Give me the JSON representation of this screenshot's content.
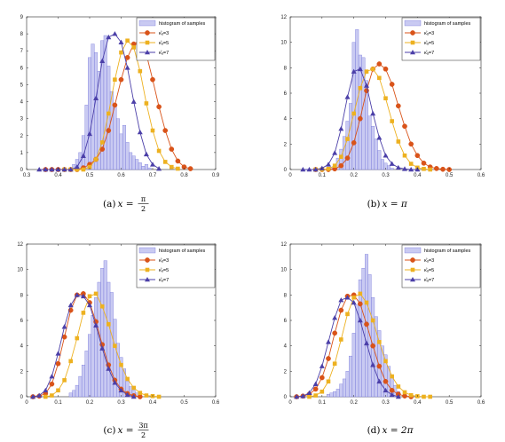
{
  "colors": {
    "histogram_fill": "#c9caf2",
    "histogram_edge": "#6b6cd6",
    "series_k3": "#d95319",
    "series_k5": "#edb120",
    "series_k7": "#4b3fa8"
  },
  "chart_data": [
    {
      "type": "bar",
      "caption": {
        "label": "(a)",
        "math": "x =",
        "frac_num": "π",
        "frac_den": "2"
      },
      "xlim": [
        0.3,
        0.9
      ],
      "ylim": [
        0,
        9
      ],
      "xticks": [
        "0.3",
        "0.4",
        "0.5",
        "0.6",
        "0.7",
        "0.8",
        "0.9"
      ],
      "yticks": [
        "0",
        "1",
        "2",
        "3",
        "4",
        "5",
        "6",
        "7",
        "8",
        "9"
      ],
      "grid": false,
      "legend_position": "top-right",
      "legend": [
        "histogram of samples",
        "κ̂ᵤ=3",
        "κ̂ᵤ=5",
        "κ̂ᵤ=7"
      ],
      "histogram": {
        "name": "histogram of samples",
        "x": [
          0.45,
          0.46,
          0.47,
          0.48,
          0.49,
          0.5,
          0.51,
          0.52,
          0.53,
          0.54,
          0.55,
          0.56,
          0.57,
          0.58,
          0.59,
          0.6,
          0.61,
          0.62,
          0.63,
          0.64,
          0.65,
          0.66,
          0.67,
          0.68,
          0.69
        ],
        "values": [
          0.3,
          0.6,
          1.0,
          2.0,
          3.8,
          6.6,
          7.4,
          6.9,
          5.8,
          7.6,
          7.9,
          6.1,
          4.6,
          3.8,
          3.0,
          2.1,
          2.6,
          1.6,
          1.0,
          0.8,
          0.6,
          0.4,
          0.2,
          0.3,
          0.1
        ]
      },
      "series": [
        {
          "name": "κ̂ᵤ=3",
          "marker": "circle",
          "x": [
            0.36,
            0.38,
            0.4,
            0.42,
            0.44,
            0.46,
            0.48,
            0.5,
            0.52,
            0.54,
            0.56,
            0.58,
            0.6,
            0.62,
            0.64,
            0.66,
            0.68,
            0.7,
            0.72,
            0.74,
            0.76,
            0.78,
            0.8,
            0.82
          ],
          "values": [
            0,
            0,
            0,
            0,
            0,
            0,
            0.1,
            0.3,
            0.6,
            1.2,
            2.3,
            3.8,
            5.3,
            6.6,
            7.4,
            7.6,
            6.8,
            5.3,
            3.7,
            2.3,
            1.2,
            0.5,
            0.15,
            0.05
          ]
        },
        {
          "name": "κ̂ᵤ=5",
          "marker": "square",
          "x": [
            0.42,
            0.44,
            0.46,
            0.48,
            0.5,
            0.52,
            0.54,
            0.56,
            0.58,
            0.6,
            0.62,
            0.64,
            0.66,
            0.68,
            0.7,
            0.72,
            0.74,
            0.76,
            0.78
          ],
          "values": [
            0,
            0,
            0,
            0,
            0.15,
            0.6,
            1.6,
            3.3,
            5.3,
            6.9,
            7.6,
            7.2,
            5.8,
            3.9,
            2.3,
            1.1,
            0.45,
            0.15,
            0.05
          ]
        },
        {
          "name": "κ̂ᵤ=7",
          "marker": "triangle",
          "x": [
            0.34,
            0.36,
            0.38,
            0.4,
            0.42,
            0.44,
            0.46,
            0.48,
            0.5,
            0.52,
            0.54,
            0.56,
            0.58,
            0.6,
            0.62,
            0.64,
            0.66,
            0.68,
            0.7,
            0.72
          ],
          "values": [
            0,
            0,
            0,
            0,
            0,
            0,
            0.15,
            0.8,
            2.1,
            4.2,
            6.4,
            7.8,
            8.0,
            7.5,
            6.0,
            4.0,
            2.2,
            0.9,
            0.3,
            0.05
          ]
        }
      ]
    },
    {
      "type": "bar",
      "caption": {
        "label": "(b)",
        "math": "x = π"
      },
      "xlim": [
        0,
        0.6
      ],
      "ylim": [
        0,
        12
      ],
      "xticks": [
        "0",
        "0.1",
        "0.2",
        "0.3",
        "0.4",
        "0.5",
        "0.6"
      ],
      "yticks": [
        "0",
        "2",
        "4",
        "6",
        "8",
        "10",
        "12"
      ],
      "grid": false,
      "legend_position": "top-right",
      "legend": [
        "histogram of samples",
        "κ̂ᵤ=3",
        "κ̂ᵤ=5",
        "κ̂ᵤ=7"
      ],
      "histogram": {
        "name": "histogram of samples",
        "x": [
          0.12,
          0.13,
          0.14,
          0.15,
          0.16,
          0.17,
          0.18,
          0.19,
          0.2,
          0.21,
          0.22,
          0.23,
          0.24,
          0.25,
          0.26,
          0.27,
          0.28,
          0.29,
          0.3,
          0.31,
          0.32
        ],
        "values": [
          0.1,
          0.2,
          0.4,
          0.9,
          1.6,
          2.6,
          3.8,
          5.2,
          10.0,
          11.0,
          9.0,
          8.8,
          7.0,
          4.2,
          3.4,
          2.4,
          1.5,
          0.8,
          0.5,
          0.3,
          0.1
        ]
      },
      "series": [
        {
          "name": "κ̂ᵤ=3",
          "marker": "circle",
          "x": [
            0.08,
            0.1,
            0.12,
            0.14,
            0.16,
            0.18,
            0.2,
            0.22,
            0.24,
            0.26,
            0.28,
            0.3,
            0.32,
            0.34,
            0.36,
            0.38,
            0.4,
            0.42,
            0.44,
            0.46,
            0.48,
            0.5
          ],
          "values": [
            0,
            0,
            0,
            0.05,
            0.3,
            0.9,
            2.1,
            4.0,
            6.2,
            7.9,
            8.3,
            7.9,
            6.7,
            5.0,
            3.4,
            2.0,
            1.1,
            0.5,
            0.2,
            0.08,
            0.02,
            0
          ]
        },
        {
          "name": "κ̂ᵤ=5",
          "marker": "square",
          "x": [
            0.08,
            0.1,
            0.12,
            0.14,
            0.16,
            0.18,
            0.2,
            0.22,
            0.24,
            0.26,
            0.28,
            0.3,
            0.32,
            0.34,
            0.36,
            0.38,
            0.4,
            0.42,
            0.44
          ],
          "values": [
            0,
            0,
            0.05,
            0.3,
            1.0,
            2.4,
            4.4,
            6.4,
            7.7,
            7.9,
            7.2,
            5.6,
            3.8,
            2.2,
            1.1,
            0.45,
            0.15,
            0.05,
            0
          ]
        },
        {
          "name": "κ̂ᵤ=7",
          "marker": "triangle",
          "x": [
            0.04,
            0.06,
            0.08,
            0.1,
            0.12,
            0.14,
            0.16,
            0.18,
            0.2,
            0.22,
            0.24,
            0.26,
            0.28,
            0.3,
            0.32,
            0.34,
            0.36,
            0.38,
            0.4
          ],
          "values": [
            0,
            0,
            0,
            0.1,
            0.4,
            1.3,
            3.2,
            5.7,
            7.7,
            7.9,
            6.6,
            4.4,
            2.5,
            1.1,
            0.45,
            0.15,
            0.05,
            0,
            0
          ]
        }
      ]
    },
    {
      "type": "bar",
      "caption": {
        "label": "(c)",
        "math": "x =",
        "frac_num": "3π",
        "frac_den": "2"
      },
      "xlim": [
        0,
        0.6
      ],
      "ylim": [
        0,
        12
      ],
      "xticks": [
        "0",
        "0.1",
        "0.2",
        "0.3",
        "0.4",
        "0.5",
        "0.6"
      ],
      "yticks": [
        "0",
        "2",
        "4",
        "6",
        "8",
        "10",
        "12"
      ],
      "grid": false,
      "legend_position": "top-right",
      "legend": [
        "histogram of samples",
        "κ̂ᵤ=3",
        "κ̂ᵤ=5",
        "κ̂ᵤ=7"
      ],
      "histogram": {
        "name": "histogram of samples",
        "x": [
          0.14,
          0.15,
          0.16,
          0.17,
          0.18,
          0.19,
          0.2,
          0.21,
          0.22,
          0.23,
          0.24,
          0.25,
          0.26,
          0.27,
          0.28,
          0.29,
          0.3,
          0.31,
          0.32,
          0.33,
          0.34,
          0.35,
          0.36
        ],
        "values": [
          0.3,
          0.5,
          0.9,
          1.6,
          2.5,
          3.6,
          4.9,
          6.4,
          7.8,
          9.0,
          10.1,
          10.7,
          9.0,
          8.2,
          6.1,
          4.2,
          3.1,
          2.2,
          1.2,
          0.8,
          0.5,
          0.3,
          0.1
        ]
      },
      "series": [
        {
          "name": "κ̂ᵤ=3",
          "marker": "circle",
          "x": [
            0.02,
            0.04,
            0.06,
            0.08,
            0.1,
            0.12,
            0.14,
            0.16,
            0.18,
            0.2,
            0.22,
            0.24,
            0.26,
            0.28,
            0.3,
            0.32,
            0.34,
            0.36
          ],
          "values": [
            0,
            0.05,
            0.25,
            1.0,
            2.6,
            4.7,
            6.8,
            8.0,
            8.1,
            7.4,
            5.9,
            4.1,
            2.5,
            1.3,
            0.6,
            0.25,
            0.08,
            0
          ]
        },
        {
          "name": "κ̂ᵤ=5",
          "marker": "square",
          "x": [
            0.06,
            0.08,
            0.1,
            0.12,
            0.14,
            0.16,
            0.18,
            0.2,
            0.22,
            0.24,
            0.26,
            0.28,
            0.3,
            0.32,
            0.34,
            0.36,
            0.38,
            0.4,
            0.42
          ],
          "values": [
            0,
            0.1,
            0.5,
            1.3,
            2.8,
            4.6,
            6.6,
            7.9,
            8.1,
            7.1,
            5.7,
            4.0,
            2.5,
            1.4,
            0.7,
            0.3,
            0.1,
            0.05,
            0
          ]
        },
        {
          "name": "κ̂ᵤ=7",
          "marker": "triangle",
          "x": [
            0.02,
            0.04,
            0.06,
            0.08,
            0.1,
            0.12,
            0.14,
            0.16,
            0.18,
            0.2,
            0.22,
            0.24,
            0.26,
            0.28,
            0.3,
            0.32,
            0.34
          ],
          "values": [
            0,
            0.1,
            0.5,
            1.6,
            3.4,
            5.5,
            7.2,
            8.0,
            7.9,
            7.2,
            5.6,
            3.8,
            2.2,
            1.1,
            0.5,
            0.15,
            0
          ]
        }
      ]
    },
    {
      "type": "bar",
      "caption": {
        "label": "(d)",
        "math": "x = 2π"
      },
      "xlim": [
        0,
        0.6
      ],
      "ylim": [
        0,
        12
      ],
      "xticks": [
        "0",
        "0.1",
        "0.2",
        "0.3",
        "0.4",
        "0.5",
        "0.6"
      ],
      "yticks": [
        "0",
        "2",
        "4",
        "6",
        "8",
        "10",
        "12"
      ],
      "grid": false,
      "legend_position": "top-right",
      "legend": [
        "histogram of samples",
        "κ̂ᵤ=3",
        "κ̂ᵤ=5",
        "κ̂ᵤ=7"
      ],
      "histogram": {
        "name": "histogram of samples",
        "x": [
          0.12,
          0.13,
          0.14,
          0.15,
          0.16,
          0.17,
          0.18,
          0.19,
          0.2,
          0.21,
          0.22,
          0.23,
          0.24,
          0.25,
          0.26,
          0.27,
          0.28,
          0.29,
          0.3,
          0.31,
          0.32,
          0.33,
          0.34
        ],
        "values": [
          0.2,
          0.3,
          0.4,
          0.6,
          1.0,
          1.4,
          2.0,
          3.2,
          5.0,
          7.2,
          9.2,
          10.1,
          11.2,
          9.6,
          7.8,
          6.3,
          5.2,
          4.0,
          3.3,
          2.4,
          1.6,
          0.9,
          0.4
        ]
      },
      "series": [
        {
          "name": "κ̂ᵤ=3",
          "marker": "circle",
          "x": [
            0.02,
            0.04,
            0.06,
            0.08,
            0.1,
            0.12,
            0.14,
            0.16,
            0.18,
            0.2,
            0.22,
            0.24,
            0.26,
            0.28,
            0.3,
            0.32,
            0.34,
            0.36,
            0.38
          ],
          "values": [
            0,
            0.05,
            0.2,
            0.6,
            1.5,
            3.0,
            5.0,
            6.8,
            7.9,
            8.0,
            7.3,
            5.7,
            4.0,
            2.4,
            1.2,
            0.5,
            0.2,
            0.06,
            0
          ]
        },
        {
          "name": "κ̂ᵤ=5",
          "marker": "square",
          "x": [
            0.06,
            0.08,
            0.1,
            0.12,
            0.14,
            0.16,
            0.18,
            0.2,
            0.22,
            0.24,
            0.26,
            0.28,
            0.3,
            0.32,
            0.34,
            0.36,
            0.38,
            0.4,
            0.42,
            0.44
          ],
          "values": [
            0,
            0.1,
            0.4,
            1.2,
            2.6,
            4.5,
            6.5,
            7.8,
            8.1,
            7.4,
            6.0,
            4.3,
            2.8,
            1.6,
            0.8,
            0.35,
            0.12,
            0.04,
            0,
            0
          ]
        },
        {
          "name": "κ̂ᵤ=7",
          "marker": "triangle",
          "x": [
            0.02,
            0.04,
            0.06,
            0.08,
            0.1,
            0.12,
            0.14,
            0.16,
            0.18,
            0.2,
            0.22,
            0.24,
            0.26,
            0.28,
            0.3,
            0.32,
            0.34
          ],
          "values": [
            0,
            0.05,
            0.3,
            1.0,
            2.4,
            4.3,
            6.2,
            7.6,
            7.8,
            7.4,
            6.0,
            4.2,
            2.5,
            1.2,
            0.5,
            0.15,
            0
          ]
        }
      ]
    }
  ]
}
